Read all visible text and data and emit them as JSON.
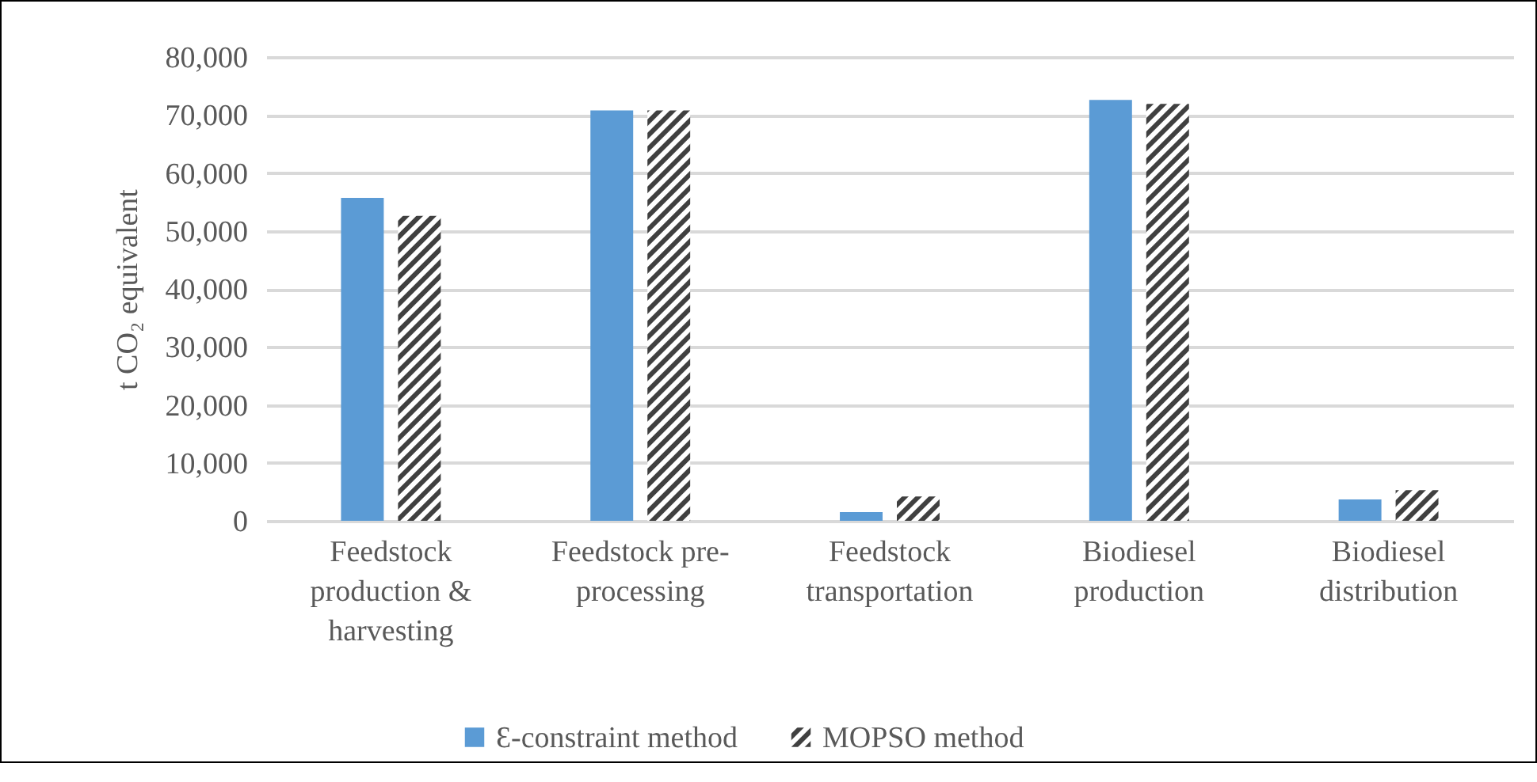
{
  "chart_data": {
    "type": "bar",
    "ylabel": "t CO₂ equivalent",
    "categories": [
      "Feedstock production & harvesting",
      "Feedstock pre-processing",
      "Feedstock transportation",
      "Biodiesel production",
      "Biodiesel distribution"
    ],
    "series": [
      {
        "name": "Ɛ-constraint method",
        "color": "#5b9bd5",
        "values": [
          55700,
          70800,
          1500,
          72600,
          3700
        ]
      },
      {
        "name": "MOPSO method",
        "color": "#404040",
        "values": [
          52600,
          70800,
          4200,
          71900,
          5300
        ]
      }
    ],
    "ylim": [
      0,
      80000
    ],
    "yticks": [
      0,
      {
        "value": 10000,
        "label": "10,000"
      },
      {
        "value": 20000,
        "label": "20,000"
      },
      {
        "value": 30000,
        "label": "30,000"
      },
      {
        "value": 40000,
        "label": "40,000"
      },
      {
        "value": 50000,
        "label": "50,000"
      },
      {
        "value": 60000,
        "label": "60,000"
      },
      {
        "value": 70000,
        "label": "70,000"
      },
      {
        "value": 80000,
        "label": "80,000"
      }
    ],
    "grid": "y",
    "legend": "bottom"
  }
}
